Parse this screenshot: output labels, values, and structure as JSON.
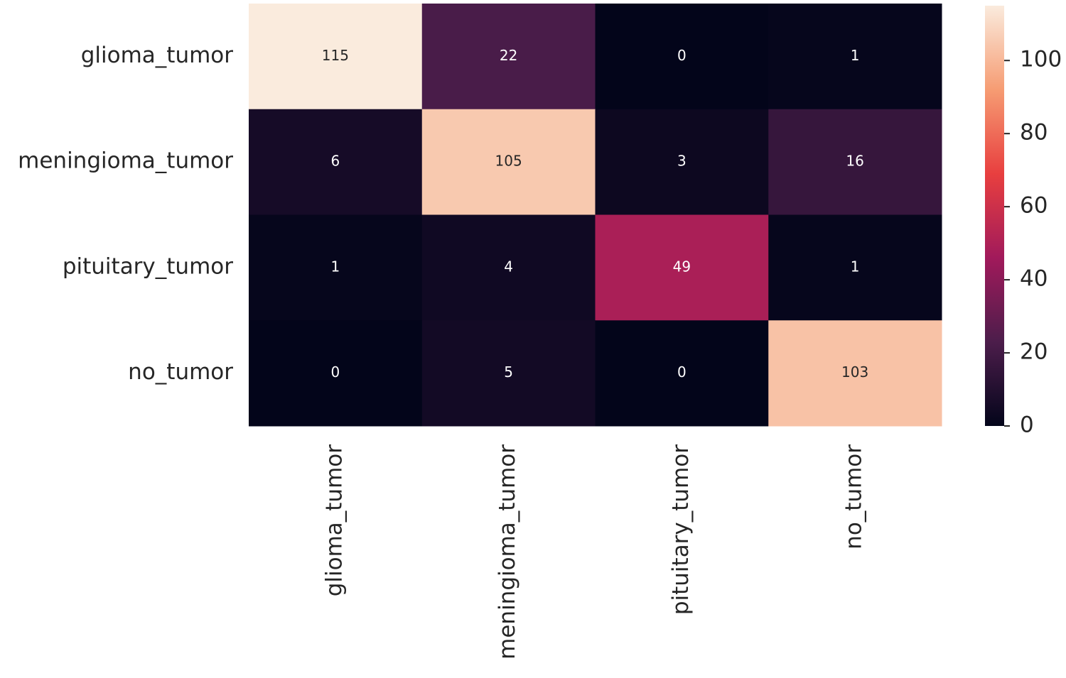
{
  "chart_data": {
    "type": "heatmap",
    "x_categories": [
      "glioma_tumor",
      "meningioma_tumor",
      "pituitary_tumor",
      "no_tumor"
    ],
    "y_categories": [
      "glioma_tumor",
      "meningioma_tumor",
      "pituitary_tumor",
      "no_tumor"
    ],
    "values": [
      [
        115,
        22,
        0,
        1
      ],
      [
        6,
        105,
        3,
        16
      ],
      [
        1,
        4,
        49,
        1
      ],
      [
        0,
        5,
        0,
        103
      ]
    ],
    "clim": [
      0,
      115
    ],
    "cticks": [
      0,
      20,
      40,
      60,
      80,
      100
    ],
    "colorscale": [
      "#03051a",
      "#4c1d4b",
      "#a11a5b",
      "#e83f3f",
      "#f69c73",
      "#faebdd"
    ]
  }
}
